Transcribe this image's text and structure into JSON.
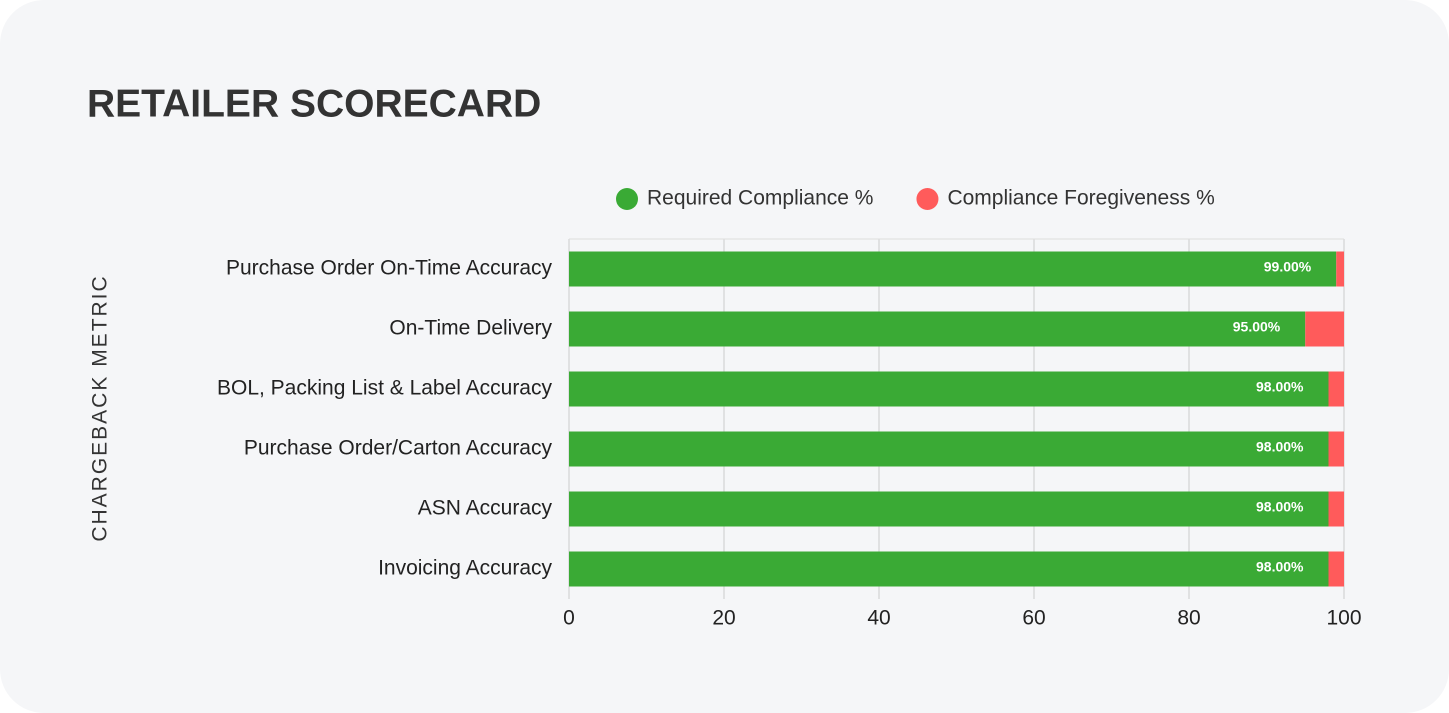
{
  "chart_data": {
    "type": "bar",
    "orientation": "horizontal",
    "stacked": true,
    "title": "RETAILER SCORECARD",
    "y_label": "CHARGEBACK METRIC",
    "categories": [
      "Purchase Order On-Time Accuracy",
      "On-Time Delivery",
      "BOL, Packing List & Label Accuracy",
      "Purchase Order/Carton Accuracy",
      "ASN Accuracy",
      "Invoicing Accuracy"
    ],
    "series": [
      {
        "name": "Required Compliance %",
        "color": "#3aaa35",
        "values": [
          99,
          95,
          98,
          98,
          98,
          98
        ],
        "value_labels": [
          "99.00%",
          "95.00%",
          "98.00%",
          "98.00%",
          "98.00%",
          "98.00%"
        ]
      },
      {
        "name": "Compliance Foregiveness %",
        "color": "#ff5b5b",
        "values": [
          1,
          5,
          2,
          2,
          2,
          2
        ]
      }
    ],
    "xlim": [
      0,
      100
    ],
    "xticks": [
      0,
      20,
      40,
      60,
      80,
      100
    ],
    "grid": true,
    "legend": "top"
  }
}
